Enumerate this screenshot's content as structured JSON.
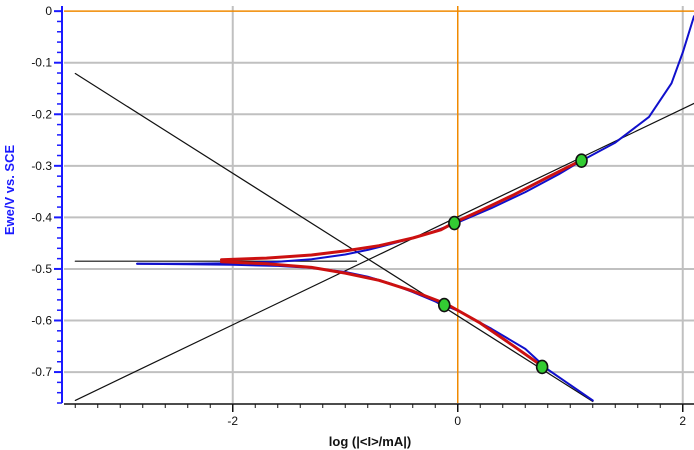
{
  "chart_data": {
    "type": "line",
    "title": "",
    "xlabel": "log (|<I>/mA|)",
    "ylabel": "Ewe/V vs. SCE",
    "xlim": [
      -3.5,
      2.1
    ],
    "ylim": [
      -0.76,
      0.01
    ],
    "x_ticks": [
      -2,
      0,
      2
    ],
    "x_tick_labels": [
      "-2",
      "0",
      "2"
    ],
    "y_ticks": [
      0,
      -0.1,
      -0.2,
      -0.3,
      -0.4,
      -0.5,
      -0.6,
      -0.7
    ],
    "y_tick_labels": [
      "0",
      "-0.1",
      "-0.2",
      "-0.3",
      "-0.4",
      "-0.5",
      "-0.6",
      "-0.7"
    ],
    "grid": true,
    "legend": "none",
    "colors": {
      "grid": "#c0c0c0",
      "axis_blue": "#1a1aff",
      "reference_orange": "#f08a00",
      "measured": "#1010cc",
      "fit": "#cc1010",
      "tafel_line": "#111111",
      "marker_fill": "#33cc33"
    },
    "reference_lines": {
      "x": 0,
      "y": 0
    },
    "series": [
      {
        "role": "measured_anodic",
        "x": [
          -2.85,
          -2.4,
          -2.0,
          -1.6,
          -1.3,
          -1.0,
          -0.8,
          -0.6,
          -0.4,
          -0.25,
          -0.1,
          0.0,
          0.3,
          0.6,
          0.9,
          1.1,
          1.4,
          1.7,
          1.9,
          2.0,
          2.1
        ],
        "y": [
          -0.49,
          -0.49,
          -0.489,
          -0.486,
          -0.481,
          -0.472,
          -0.463,
          -0.452,
          -0.44,
          -0.43,
          -0.418,
          -0.41,
          -0.382,
          -0.351,
          -0.316,
          -0.29,
          -0.255,
          -0.205,
          -0.14,
          -0.08,
          -0.01
        ]
      },
      {
        "role": "measured_cathodic",
        "x": [
          -2.85,
          -2.4,
          -2.0,
          -1.6,
          -1.3,
          -1.0,
          -0.8,
          -0.6,
          -0.4,
          -0.2,
          0.0,
          0.3,
          0.6,
          0.8,
          1.0,
          1.2
        ],
        "y": [
          -0.49,
          -0.491,
          -0.492,
          -0.494,
          -0.498,
          -0.506,
          -0.515,
          -0.528,
          -0.545,
          -0.563,
          -0.581,
          -0.616,
          -0.655,
          -0.695,
          -0.725,
          -0.755
        ]
      },
      {
        "role": "fit_anodic",
        "x": [
          -2.1,
          -1.7,
          -1.3,
          -1.0,
          -0.7,
          -0.4,
          -0.15,
          -0.03,
          0.2,
          0.5,
          0.8,
          1.1
        ],
        "y": [
          -0.482,
          -0.479,
          -0.473,
          -0.465,
          -0.455,
          -0.44,
          -0.424,
          -0.41,
          -0.387,
          -0.356,
          -0.322,
          -0.289
        ]
      },
      {
        "role": "fit_cathodic",
        "x": [
          -2.1,
          -1.7,
          -1.3,
          -1.0,
          -0.7,
          -0.4,
          -0.1,
          0.2,
          0.5,
          0.76
        ],
        "y": [
          -0.486,
          -0.49,
          -0.497,
          -0.508,
          -0.522,
          -0.543,
          -0.568,
          -0.605,
          -0.65,
          -0.69
        ]
      },
      {
        "role": "tafel_anodic",
        "x": [
          -3.4,
          2.1
        ],
        "y": [
          -0.755,
          -0.179
        ]
      },
      {
        "role": "tafel_cathodic",
        "x": [
          -3.4,
          1.2
        ],
        "y": [
          -0.121,
          -0.757
        ]
      },
      {
        "role": "corrosion_potential",
        "x": [
          -3.4,
          -0.9
        ],
        "y": [
          -0.485,
          -0.485
        ]
      }
    ],
    "markers": [
      {
        "x": -0.03,
        "y": -0.411
      },
      {
        "x": 1.1,
        "y": -0.29
      },
      {
        "x": -0.12,
        "y": -0.57
      },
      {
        "x": 0.75,
        "y": -0.69
      }
    ]
  }
}
